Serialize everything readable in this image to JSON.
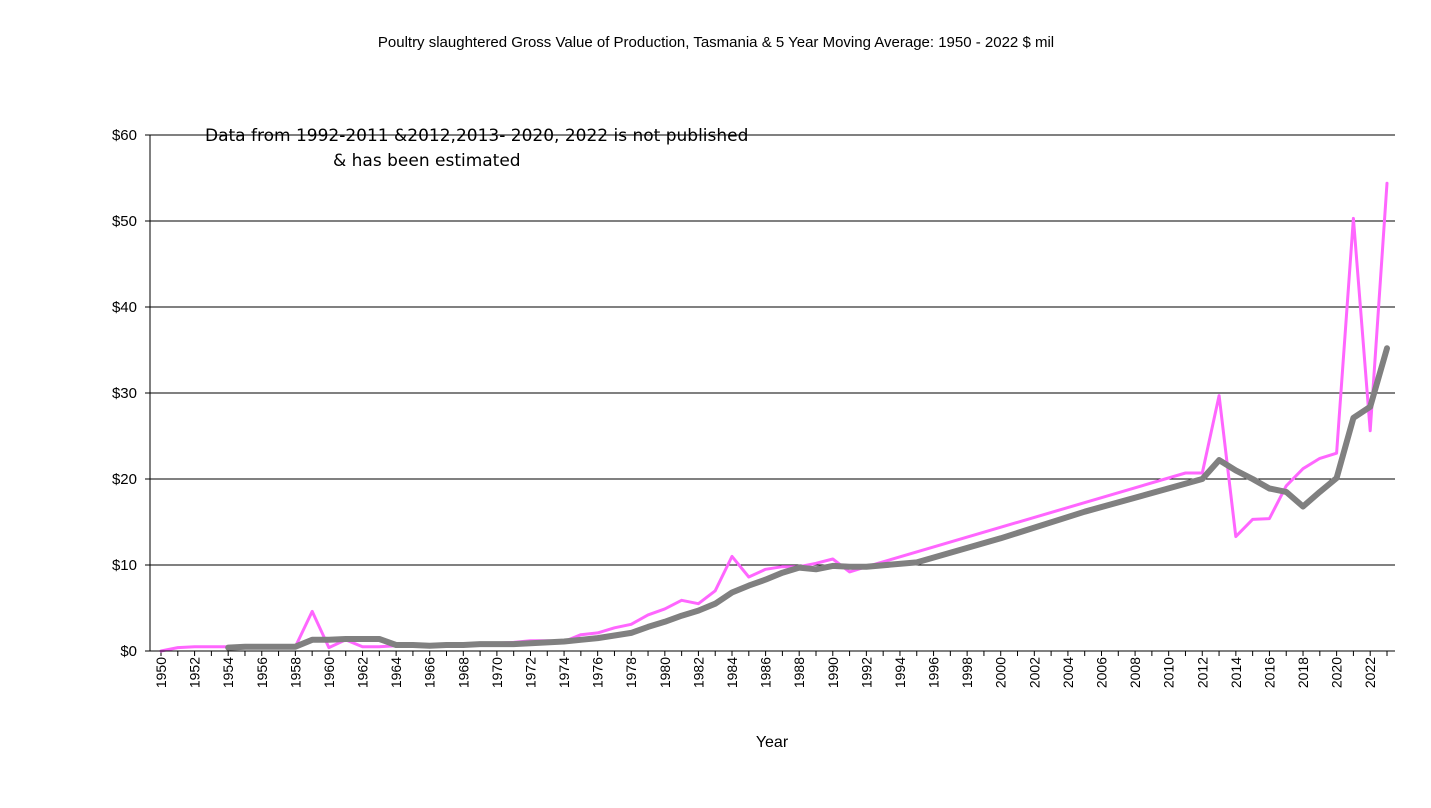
{
  "chart_data": {
    "type": "line",
    "title": "Poultry slaughtered  Gross Value of Production, Tasmania & 5 Year Moving Average: 1950 - 2022 $ mil",
    "xlabel": "Year",
    "ylabel": "",
    "annotation": [
      "Data from 1992-2011 &2012,2013- 2020, 2022  is not published",
      "& has been estimated"
    ],
    "ylim": [
      0,
      60
    ],
    "y_ticks": [
      0,
      10,
      20,
      30,
      40,
      50,
      60
    ],
    "y_tick_labels": [
      "$0",
      "$10",
      "$20",
      "$30",
      "$40",
      "$50",
      "$60"
    ],
    "x_tick_labels": [
      "1950",
      "1952",
      "1954",
      "1956",
      "1958",
      "1960",
      "1962",
      "1964",
      "1966",
      "1968",
      "1970",
      "1972",
      "1974",
      "1976",
      "1978",
      "1980",
      "1982",
      "1984",
      "1986",
      "1988",
      "1990",
      "1992",
      "1994",
      "1996",
      "1998",
      "2000",
      "2002",
      "2004",
      "2006",
      "2008",
      "2010",
      "2012",
      "2014",
      "2016",
      "2018",
      "2020",
      "2022"
    ],
    "x_first": 1950,
    "x_last": 2023,
    "grid": true,
    "series": [
      {
        "name": "Gross Value of Production",
        "color": "#ff66ff",
        "x": [
          1950,
          1951,
          1952,
          1953,
          1954,
          1955,
          1956,
          1957,
          1958,
          1959,
          1960,
          1961,
          1962,
          1963,
          1964,
          1965,
          1966,
          1967,
          1968,
          1969,
          1970,
          1971,
          1972,
          1973,
          1974,
          1975,
          1976,
          1977,
          1978,
          1979,
          1980,
          1981,
          1982,
          1983,
          1984,
          1985,
          1986,
          1987,
          1988,
          1989,
          1990,
          1991,
          1992,
          2011,
          2012,
          2013,
          2014,
          2015,
          2016,
          2017,
          2018,
          2019,
          2020,
          2021,
          2022,
          2023
        ],
        "values": [
          0,
          0.4,
          0.5,
          0.5,
          0.5,
          0.5,
          0.5,
          0.5,
          0.5,
          4.6,
          0.4,
          1.3,
          0.5,
          0.5,
          0.6,
          0.7,
          0.7,
          0.8,
          0.8,
          0.9,
          0.9,
          1.0,
          1.2,
          1.2,
          1.1,
          1.9,
          2.1,
          2.7,
          3.1,
          4.2,
          4.9,
          5.9,
          5.5,
          7.0,
          11.0,
          8.6,
          9.5,
          9.8,
          9.8,
          10.2,
          10.7,
          9.2,
          9.8,
          20.7,
          20.7,
          29.7,
          13.3,
          15.3,
          15.4,
          19.2,
          21.2,
          22.4,
          23.0,
          50.3,
          25.6,
          54.4
        ]
      },
      {
        "name": "5 Year Moving Average",
        "color": "#808080",
        "x": [
          1954,
          1955,
          1956,
          1957,
          1958,
          1959,
          1960,
          1961,
          1962,
          1963,
          1964,
          1965,
          1966,
          1967,
          1968,
          1969,
          1970,
          1971,
          1972,
          1973,
          1974,
          1975,
          1976,
          1977,
          1978,
          1979,
          1980,
          1981,
          1982,
          1983,
          1984,
          1985,
          1986,
          1987,
          1988,
          1989,
          1990,
          1991,
          1992,
          1995,
          2000,
          2005,
          2012,
          2013,
          2014,
          2015,
          2016,
          2017,
          2018,
          2019,
          2020,
          2021,
          2022,
          2023
        ],
        "values": [
          0.4,
          0.5,
          0.5,
          0.5,
          0.5,
          1.3,
          1.3,
          1.4,
          1.4,
          1.4,
          0.7,
          0.7,
          0.6,
          0.7,
          0.7,
          0.8,
          0.8,
          0.8,
          0.9,
          1.0,
          1.1,
          1.3,
          1.5,
          1.8,
          2.1,
          2.8,
          3.4,
          4.1,
          4.7,
          5.5,
          6.8,
          7.6,
          8.3,
          9.1,
          9.7,
          9.5,
          9.9,
          9.8,
          9.8,
          10.3,
          13.1,
          16.2,
          20.0,
          22.2,
          21.0,
          20.0,
          18.9,
          18.5,
          16.8,
          18.5,
          20.1,
          27.1,
          28.4,
          35.2
        ]
      }
    ]
  }
}
